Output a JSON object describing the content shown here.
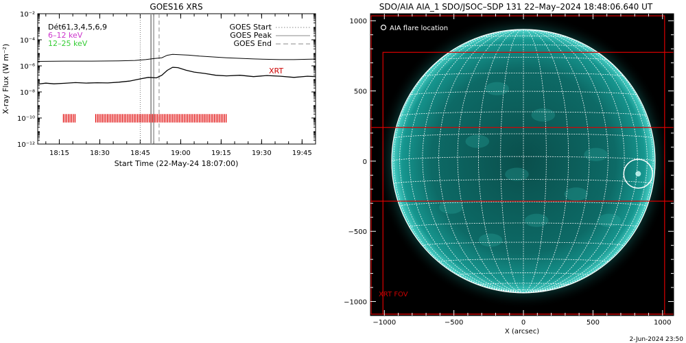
{
  "footer_timestamp": "2-Jun-2024 23:50",
  "colors": {
    "axis": "#000000",
    "goes_long": "#000000",
    "legend_6_12": "#cc33cc",
    "legend_12_25": "#33cc33",
    "xrt": "#cc0000",
    "sun_teal": "#0c8f8a",
    "grid": "#ffffff",
    "flare_marker": "#ffffff"
  },
  "chart_data": [
    {
      "id": "goes_xrs",
      "type": "line",
      "title": "GOES16 XRS",
      "xlabel": "Start Time (22-May-24 18:07:00)",
      "ylabel": "X-ray Flux (W m⁻²)",
      "yscale": "log",
      "xlim_minutes": [
        0,
        103
      ],
      "ylim": [
        1e-12,
        0.01
      ],
      "xticks": [
        {
          "m": 8,
          "label": "18:15"
        },
        {
          "m": 23,
          "label": "18:30"
        },
        {
          "m": 38,
          "label": "18:45"
        },
        {
          "m": 53,
          "label": "19:00"
        },
        {
          "m": 68,
          "label": "19:15"
        },
        {
          "m": 83,
          "label": "19:30"
        },
        {
          "m": 98,
          "label": "19:45"
        }
      ],
      "yticks": [
        {
          "exp": -2,
          "label": "10⁻²"
        },
        {
          "exp": -4,
          "label": "10⁻⁴"
        },
        {
          "exp": -6,
          "label": "10⁻⁶"
        },
        {
          "exp": -8,
          "label": "10⁻⁸"
        },
        {
          "exp": -10,
          "label": "10⁻¹⁰"
        },
        {
          "exp": -12,
          "label": "10⁻¹²"
        }
      ],
      "legend_top_left": [
        "Dét61,3,4,5,6,9",
        "6–12 keV",
        "12–25 keV"
      ],
      "legend_top_right": [
        "GOES Start",
        "GOES Peak",
        "GOES End"
      ],
      "xrt_label": "XRT",
      "series": [
        {
          "name": "",
          "t_min": [
            0,
            10,
            20,
            30,
            36,
            40,
            43,
            46,
            48,
            50,
            52,
            56,
            60,
            70,
            80,
            90,
            95,
            100,
            103
          ],
          "flux": [
            2.2e-06,
            2.3e-06,
            2.3e-06,
            2.4e-06,
            2.6e-06,
            3e-06,
            3.6e-06,
            4.2e-06,
            6.5e-06,
            7.6e-06,
            7.3e-06,
            6.6e-06,
            5.6e-06,
            4.2e-06,
            3.4e-06,
            3e-06,
            3e-06,
            3.2e-06,
            3.3e-06
          ]
        },
        {
          "name": "",
          "t_min": [
            0,
            3,
            6,
            10,
            14,
            18,
            22,
            26,
            30,
            34,
            38,
            41,
            44,
            46,
            48,
            50,
            52,
            55,
            58,
            62,
            66,
            70,
            75,
            80,
            85,
            90,
            95,
            100,
            103
          ],
          "flux": [
            4e-08,
            4.7e-08,
            4.2e-08,
            4.6e-08,
            5.2e-08,
            4.8e-08,
            5.1e-08,
            4.9e-08,
            5.6e-08,
            6.8e-08,
            1e-07,
            1.3e-07,
            1.2e-07,
            1.9e-07,
            4.5e-07,
            7.8e-07,
            7.3e-07,
            4.6e-07,
            3.3e-07,
            2.6e-07,
            1.9e-07,
            1.7e-07,
            1.9e-07,
            1.5e-07,
            1.8e-07,
            1.6e-07,
            1.3e-07,
            1.6e-07,
            1.5e-07
          ]
        }
      ],
      "vertical_markers_minutes": {
        "goes_start": 38,
        "aia_image": 42,
        "goes_peak": 43,
        "goes_end": 45
      },
      "xrt_intervals_minutes": [
        [
          9.5,
          14
        ],
        [
          21.5,
          70
        ]
      ]
    },
    {
      "id": "aia_map",
      "type": "image",
      "title": "SDO/AIA AIA_1 SDO/JSOC–SDP 131 22–May–2024 18:48:06.640 UT",
      "xlabel": "X (arcsec)",
      "xlim": [
        -1100,
        1080
      ],
      "ylim": [
        -1100,
        1050
      ],
      "xticks": [
        {
          "v": -1000,
          "label": "−1000"
        },
        {
          "v": -500,
          "label": "−500"
        },
        {
          "v": 0,
          "label": "0"
        },
        {
          "v": 500,
          "label": "500"
        },
        {
          "v": 1000,
          "label": "1000"
        }
      ],
      "yticks": [
        {
          "v": 1000,
          "label": "1000"
        },
        {
          "v": 500,
          "label": "500"
        },
        {
          "v": 0,
          "label": "0"
        },
        {
          "v": -500,
          "label": "−500"
        },
        {
          "v": -1000,
          "label": "−1000"
        }
      ],
      "legend_label": "AIA flare location",
      "fov_label": "XRT FOV",
      "solar_radius_arcsec": 947,
      "flare_location_arcsec": [
        825,
        -90
      ],
      "grid_spacing_deg": 10,
      "fov_boxes_arcsec": [
        [
          -1095,
          -1090,
          1015,
          1035
        ],
        [
          -1010,
          -1090,
          1110,
          775
        ],
        [
          -1100,
          -285,
          1100,
          240
        ]
      ]
    }
  ]
}
